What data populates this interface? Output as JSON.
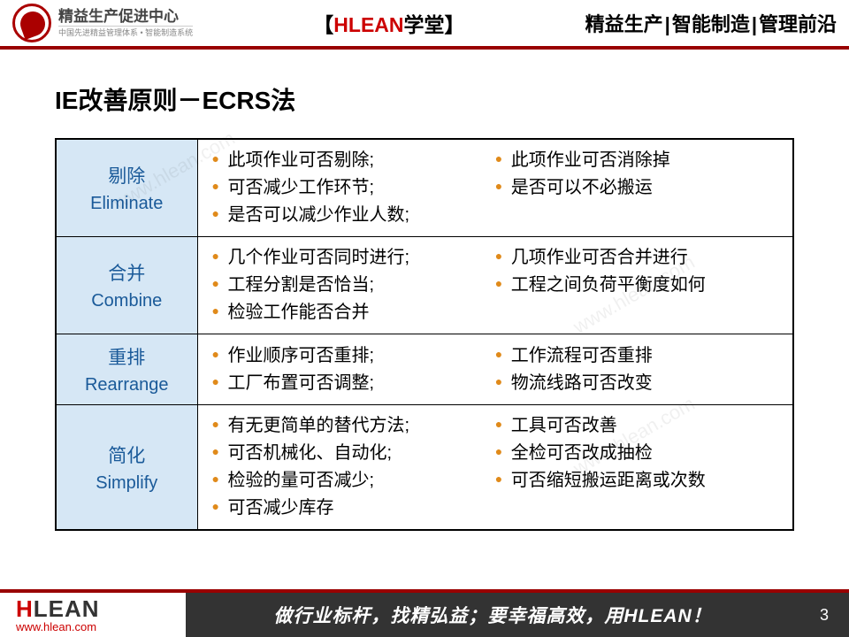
{
  "header": {
    "logo_title": "精益生产促进中心",
    "logo_sub": "中国先进精益管理体系 • 智能制造系统",
    "center_bracket_l": "【",
    "center_brand": "HLEAN",
    "center_text": "学堂",
    "center_bracket_r": "】",
    "right_a": "精益生产",
    "right_b": "智能制造",
    "right_c": "管理前沿"
  },
  "title": "IE改善原则－ECRS法",
  "table": {
    "header_bg": "#d6e7f5",
    "header_color": "#1a5a99",
    "bullet_color": "#e08a1a",
    "border_color": "#000000",
    "rows": [
      {
        "cn": "剔除",
        "en": "Eliminate",
        "left": [
          "此项作业可否剔除;",
          "可否减少工作环节;",
          "是否可以减少作业人数;"
        ],
        "right": [
          "此项作业可否消除掉",
          "是否可以不必搬运"
        ]
      },
      {
        "cn": "合并",
        "en": "Combine",
        "left": [
          "几个作业可否同时进行;",
          "工程分割是否恰当;",
          "检验工作能否合并"
        ],
        "right": [
          "几项作业可否合并进行",
          "工程之间负荷平衡度如何"
        ]
      },
      {
        "cn": "重排",
        "en": "Rearrange",
        "left": [
          "作业顺序可否重排;",
          "工厂布置可否调整;"
        ],
        "right": [
          "工作流程可否重排",
          "物流线路可否改变"
        ]
      },
      {
        "cn": "简化",
        "en": "Simplify",
        "left": [
          "有无更简单的替代方法;",
          "可否机械化、自动化;",
          "检验的量可否减少;",
          "可否减少库存"
        ],
        "right": [
          "工具可否改善",
          "全检可否改成抽检",
          "可否缩短搬运距离或次数"
        ]
      }
    ]
  },
  "footer": {
    "brand_h": "H",
    "brand_rest": "LEAN",
    "url": "www.hlean.com",
    "slogan": "做行业标杆，找精弘益；要幸福高效，用HLEAN！",
    "page": "3"
  },
  "watermark": "www.hlean.com"
}
